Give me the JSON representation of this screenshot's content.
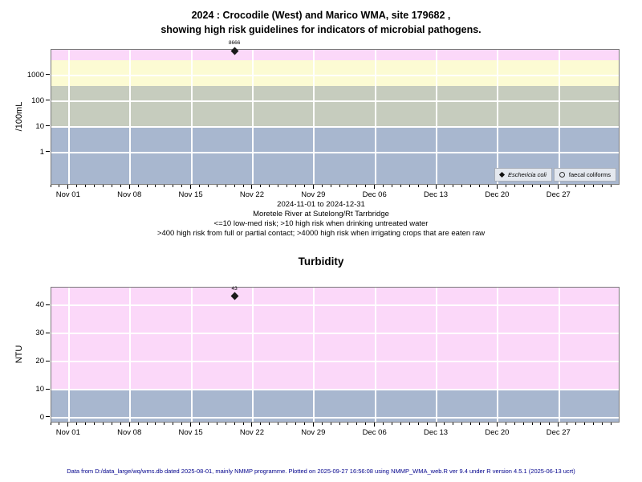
{
  "page": {
    "title_line1": "2024 : Crocodile (West) and Marico WMA, site 179682 ,",
    "title_line2": "showing high risk guidelines for indicators of microbial pathogens.",
    "footer": "Data from D:/data_large/wq/wms.db dated 2025-08-01, mainly NMMP programme. Plotted on 2025-09-27 16:56:08 using NMMP_WMA_web.R ver 9.4 under R version 4.5.1 (2025-06-13 ucrt)"
  },
  "chart_data": [
    {
      "id": "microbial",
      "type": "scatter",
      "title": "",
      "ylabel": "/100mL",
      "y_scale": "log10",
      "ylim": [
        0.06,
        10000
      ],
      "y_ticks": [
        1,
        10,
        100,
        1000
      ],
      "grid": true,
      "grid_color": "#ffffff",
      "bands": [
        {
          "from": 4000,
          "to": 10000,
          "color": "#fbd8f9",
          "meaning": "high risk when irrigating crops eaten raw (>4000)"
        },
        {
          "from": 400,
          "to": 4000,
          "color": "#fcfbd3",
          "meaning": "high risk from full or partial contact (>400)"
        },
        {
          "from": 10,
          "to": 400,
          "color": "#c6ccbe",
          "meaning": "high risk when drinking untreated water (>10)"
        },
        {
          "from": 0.06,
          "to": 10,
          "color": "#a8b7cf",
          "meaning": "low-med risk (<=10)"
        }
      ],
      "x": {
        "domain_days": [
          -2,
          62.8
        ],
        "ticks": [
          {
            "label": "Nov 01",
            "day": 0
          },
          {
            "label": "Nov 08",
            "day": 7
          },
          {
            "label": "Nov 15",
            "day": 14
          },
          {
            "label": "Nov 22",
            "day": 21
          },
          {
            "label": "Nov 29",
            "day": 28
          },
          {
            "label": "Dec 06",
            "day": 35
          },
          {
            "label": "Dec 13",
            "day": 42
          },
          {
            "label": "Dec 20",
            "day": 49
          },
          {
            "label": "Dec 27",
            "day": 56
          }
        ],
        "minor_tick_days": {
          "from": -2,
          "to": 62
        }
      },
      "series": [
        {
          "name": "Eschericia coli",
          "symbol": "filled-diamond",
          "points": [
            {
              "day": 19,
              "value": 8666,
              "label": "8666"
            }
          ]
        },
        {
          "name": "faecal coliforms",
          "symbol": "open-circle",
          "points": []
        }
      ],
      "legend_position": "bottom-right",
      "notes": [
        "2024-11-01 to 2024-12-31",
        "Moretele River at Sutelong/Rt Tarrbridge",
        "<=10 low-med risk; >10 high risk when drinking untreated water",
        ">400 high risk from full or partial contact; >4000 high risk when irrigating crops that are eaten raw"
      ]
    },
    {
      "id": "turbidity",
      "type": "scatter",
      "title": "Turbidity",
      "ylabel": "NTU",
      "y_scale": "linear",
      "ylim": [
        -1.43,
        46.3
      ],
      "y_ticks": [
        0,
        10,
        20,
        30,
        40
      ],
      "grid": true,
      "grid_color": "#ffffff",
      "bands": [
        {
          "from": 10,
          "to": 46.3,
          "color": "#fbd8f9",
          "meaning": "high turbidity"
        },
        {
          "from": -1.43,
          "to": 10,
          "color": "#a8b7cf",
          "meaning": "low turbidity"
        }
      ],
      "x": {
        "domain_days": [
          -2,
          62.8
        ],
        "ticks": [
          {
            "label": "Nov 01",
            "day": 0
          },
          {
            "label": "Nov 08",
            "day": 7
          },
          {
            "label": "Nov 15",
            "day": 14
          },
          {
            "label": "Nov 22",
            "day": 21
          },
          {
            "label": "Nov 29",
            "day": 28
          },
          {
            "label": "Dec 06",
            "day": 35
          },
          {
            "label": "Dec 13",
            "day": 42
          },
          {
            "label": "Dec 20",
            "day": 49
          },
          {
            "label": "Dec 27",
            "day": 56
          }
        ],
        "minor_tick_days": {
          "from": -2,
          "to": 62
        }
      },
      "series": [
        {
          "name": "Turbidity",
          "symbol": "filled-diamond",
          "points": [
            {
              "day": 19,
              "value": 43,
              "label": "43"
            }
          ]
        }
      ],
      "legend_position": "none",
      "notes": []
    }
  ]
}
